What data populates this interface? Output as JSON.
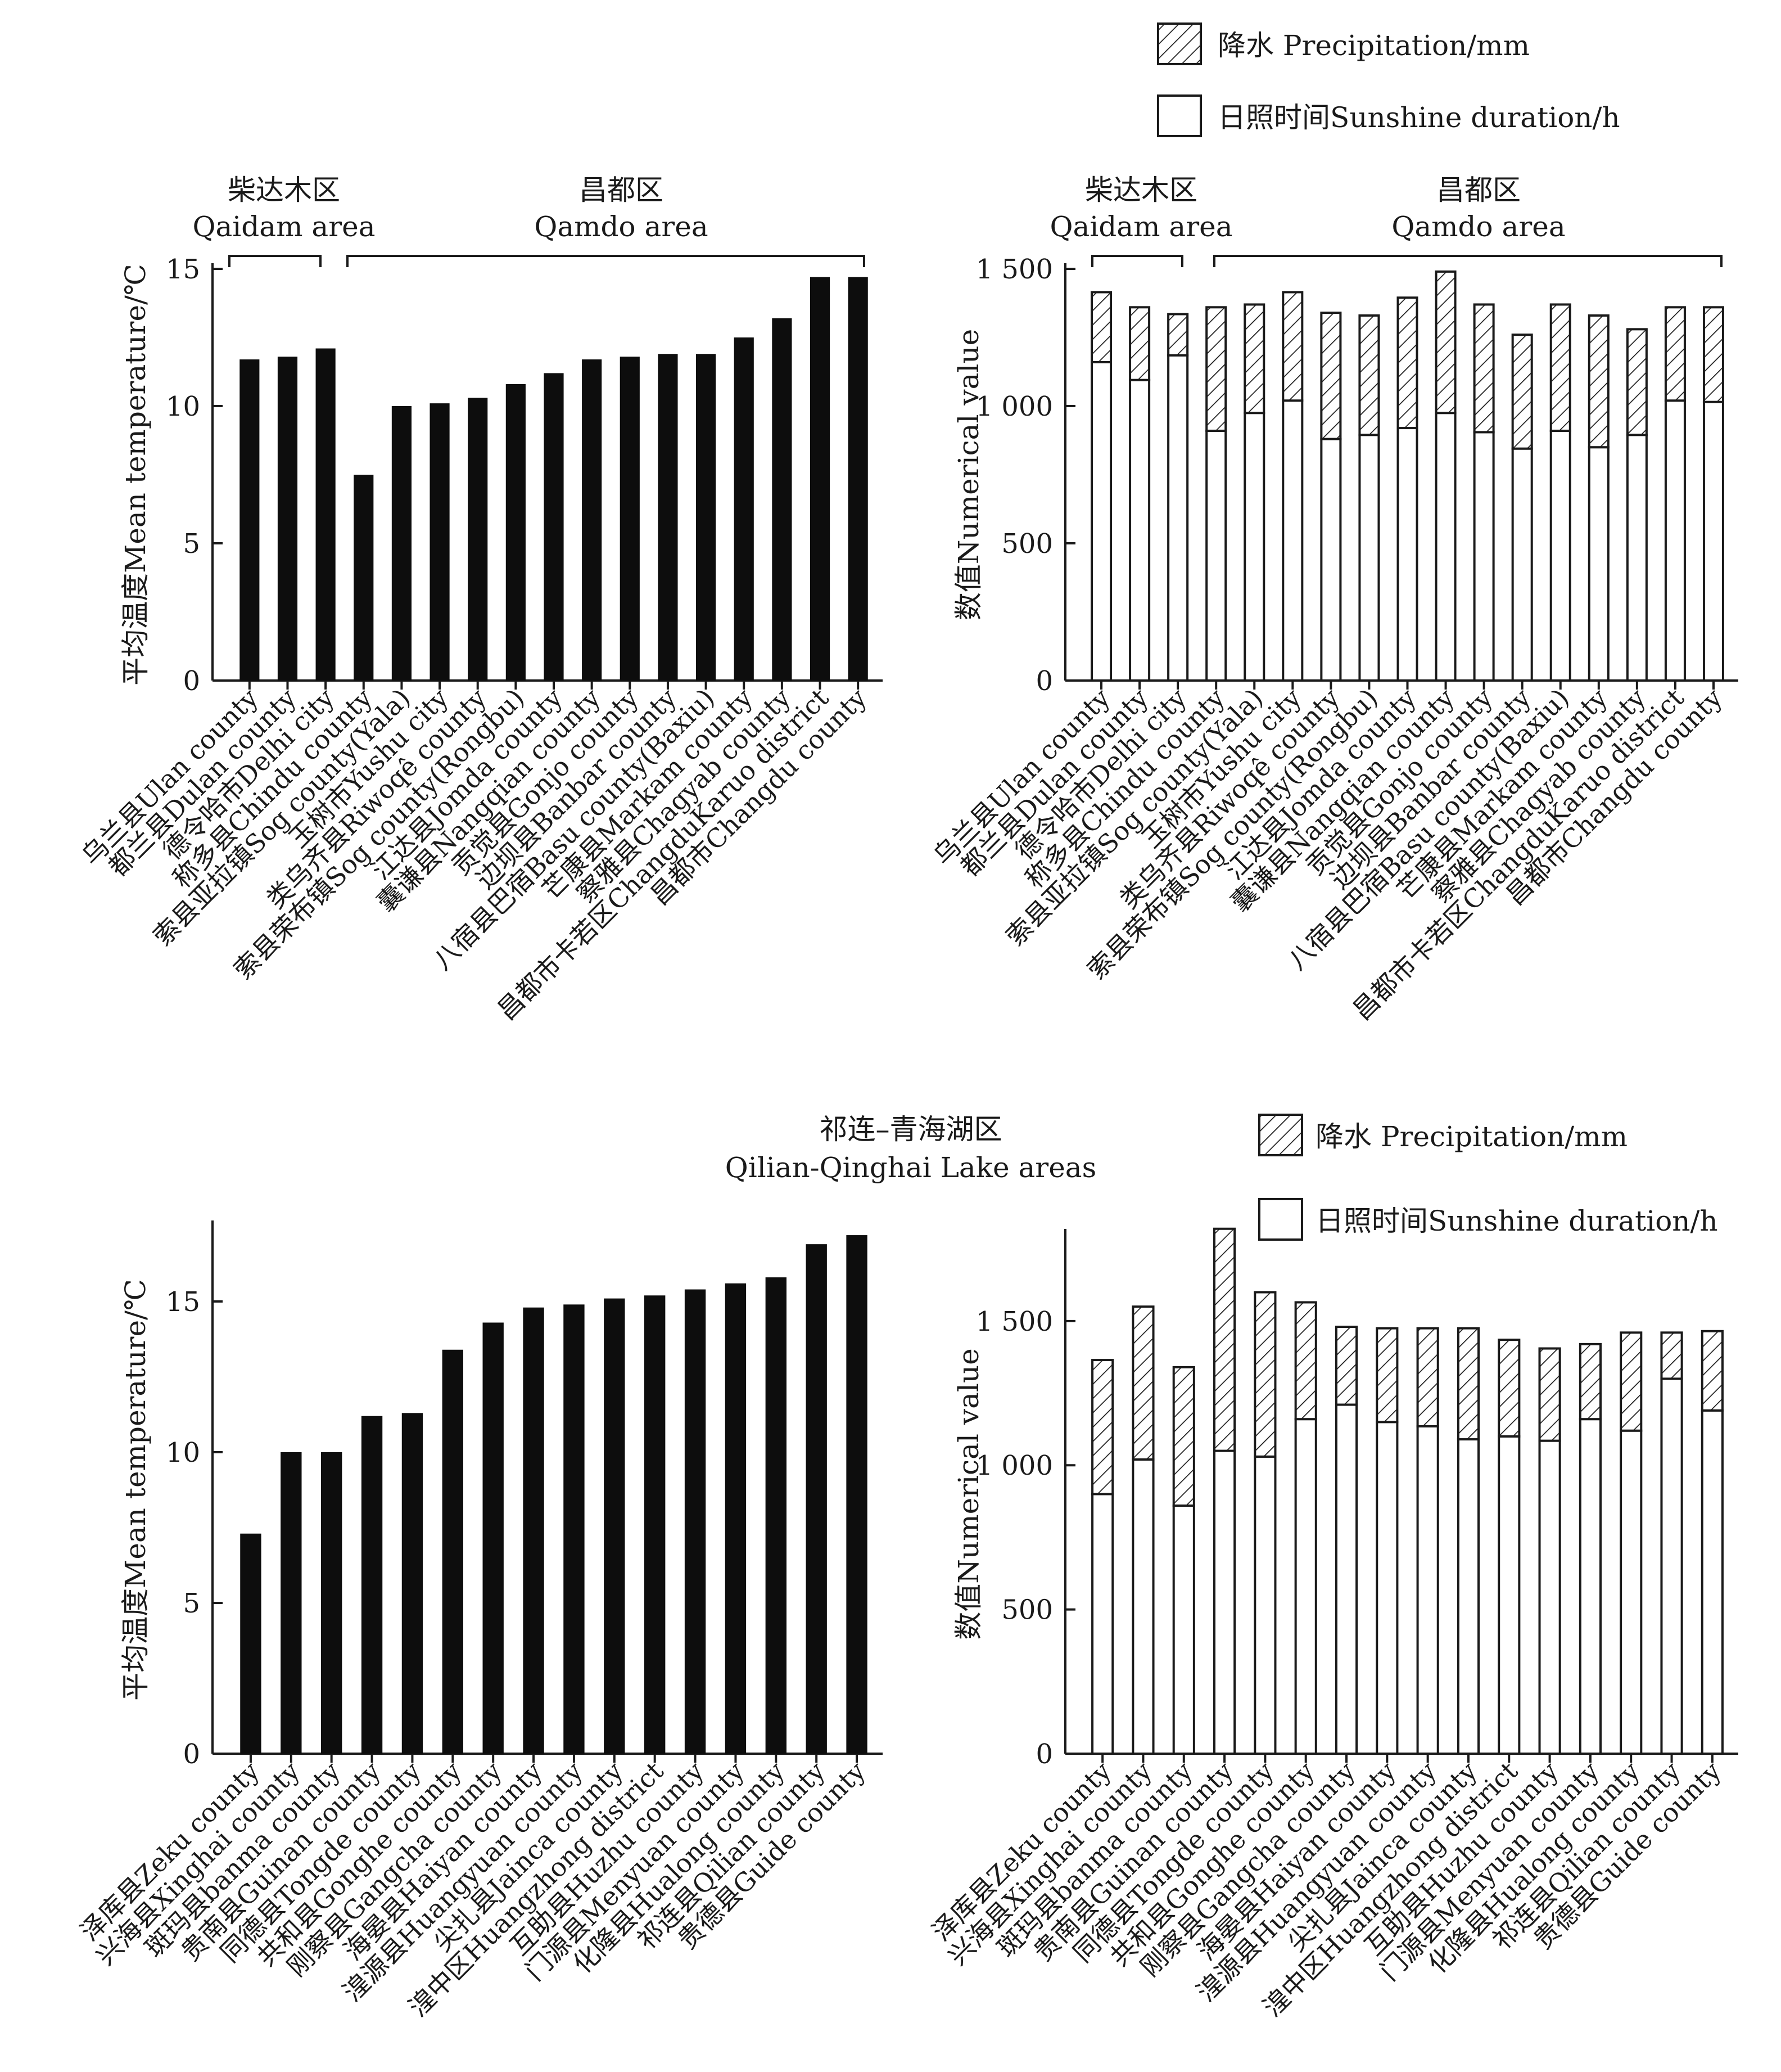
{
  "legend": {
    "precip_label": "降水 Precipitation/mm",
    "sun_label": "日照时间Sunshine duration/h"
  },
  "groups": {
    "qaidam_cn": "柴达木区",
    "qaidam_en": "Qaidam area",
    "qamdo_cn": "昌都区",
    "qamdo_en": "Qamdo area",
    "qilian_cn": "祁连–青海湖区",
    "qilian_en": "Qilian-Qinghai Lake areas"
  },
  "chart_data": [
    {
      "id": "top-left",
      "type": "bar",
      "ylabel": "平均温度Mean temperature/℃",
      "ylim": [
        0,
        15
      ],
      "yticks": [
        0,
        5,
        10,
        15
      ],
      "ytick_labels": [
        "0",
        "5",
        "10",
        "15"
      ],
      "categories": [
        "乌兰县Ulan county",
        "都兰县Dulan county",
        "德令哈市Delhi city",
        "称多县Chindu county",
        "索县亚拉镇Sog county(Yala)",
        "玉树市Yushu city",
        "类乌齐县Riwoqê county",
        "索县荣布镇Sog county(Rongbu)",
        "江达县Jomda county",
        "囊谦县Nangqian county",
        "贡觉县Gonjo county",
        "边坝县Banbar county",
        "八宿县巴宿Basu county(Baxiu)",
        "芒康县Markam county",
        "察雅县Chagyab county",
        "昌都市卡若区ChangduKaruo district",
        "昌都市Changdu county"
      ],
      "values": [
        11.7,
        11.8,
        12.1,
        7.5,
        10.0,
        10.1,
        10.3,
        10.8,
        11.2,
        11.7,
        11.8,
        11.9,
        11.9,
        12.5,
        13.2,
        14.7,
        14.7
      ]
    },
    {
      "id": "top-right",
      "type": "bar",
      "stacked": true,
      "ylabel": "数值Numerical value",
      "ylim": [
        0,
        1500
      ],
      "yticks": [
        0,
        500,
        1000,
        1500
      ],
      "ytick_labels": [
        "0",
        "500",
        "1 000",
        "1 500"
      ],
      "categories": [
        "乌兰县Ulan county",
        "都兰县Dulan county",
        "德令哈市Delhi city",
        "称多县Chindu county",
        "索县亚拉镇Sog county(Yala)",
        "玉树市Yushu city",
        "类乌齐县Riwoqê county",
        "索县荣布镇Sog county(Rongbu)",
        "江达县Jomda county",
        "囊谦县Nangqian county",
        "贡觉县Gonjo county",
        "边坝县Banbar county",
        "八宿县巴宿Basu county(Baxiu)",
        "芒康县Markam county",
        "察雅县Chagyab county",
        "昌都市卡若区ChangduKaruo district",
        "昌都市Changdu county"
      ],
      "series": [
        {
          "name": "日照时间Sunshine duration/h",
          "values": [
            1160,
            1095,
            1185,
            910,
            975,
            1020,
            880,
            895,
            920,
            975,
            905,
            845,
            910,
            850,
            895,
            1020,
            1015
          ]
        },
        {
          "name": "降水 Precipitation/mm",
          "values": [
            255,
            265,
            150,
            450,
            395,
            395,
            460,
            435,
            475,
            515,
            465,
            415,
            460,
            480,
            385,
            340,
            345
          ]
        }
      ]
    },
    {
      "id": "bottom-left",
      "type": "bar",
      "ylabel": "平均温度Mean temperature/℃",
      "ylim": [
        0,
        17.5
      ],
      "yticks": [
        0,
        5,
        10,
        15
      ],
      "ytick_labels": [
        "0",
        "5",
        "10",
        "15"
      ],
      "categories": [
        "泽库县Zeku county",
        "兴海县Xinghai county",
        "斑玛县banma county",
        "贵南县Guinan county",
        "同德县Tongde county",
        "共和县Gonghe county",
        "刚察县Gangcha county",
        "海晏县Haiyan county",
        "湟源县Huangyuan county",
        "尖扎县Jainca county",
        "湟中区Huangzhong district",
        "互助县Huzhu county",
        "门源县Menyuan county",
        "化隆县Hualong county",
        "祁连县Qilian county",
        "贵德县Guide county"
      ],
      "values": [
        7.3,
        10.0,
        10.0,
        11.2,
        11.3,
        13.4,
        14.3,
        14.8,
        14.9,
        15.1,
        15.2,
        15.4,
        15.6,
        15.8,
        16.9,
        17.2
      ]
    },
    {
      "id": "bottom-right",
      "type": "bar",
      "stacked": true,
      "ylabel": "数值Numerical value",
      "ylim": [
        0,
        1800
      ],
      "yticks": [
        0,
        500,
        1000,
        1500
      ],
      "ytick_labels": [
        "0",
        "500",
        "1 000",
        "1 500"
      ],
      "categories": [
        "泽库县Zeku county",
        "兴海县Xinghai county",
        "斑玛县banma county",
        "贵南县Guinan county",
        "同德县Tongde county",
        "共和县Gonghe county",
        "刚察县Gangcha county",
        "海晏县Haiyan county",
        "湟源县Huangyuan county",
        "尖扎县Jainca county",
        "湟中区Huangzhong district",
        "互助县Huzhu county",
        "门源县Menyuan county",
        "化隆县Hualong county",
        "祁连县Qilian county",
        "贵德县Guide county"
      ],
      "series": [
        {
          "name": "日照时间Sunshine duration/h",
          "values": [
            900,
            1020,
            860,
            1050,
            1030,
            1160,
            1210,
            1150,
            1135,
            1090,
            1100,
            1085,
            1160,
            1120,
            1300,
            1190
          ]
        },
        {
          "name": "降水 Precipitation/mm",
          "values": [
            465,
            530,
            480,
            770,
            570,
            405,
            270,
            325,
            340,
            385,
            335,
            320,
            260,
            340,
            160,
            275
          ]
        }
      ]
    }
  ]
}
